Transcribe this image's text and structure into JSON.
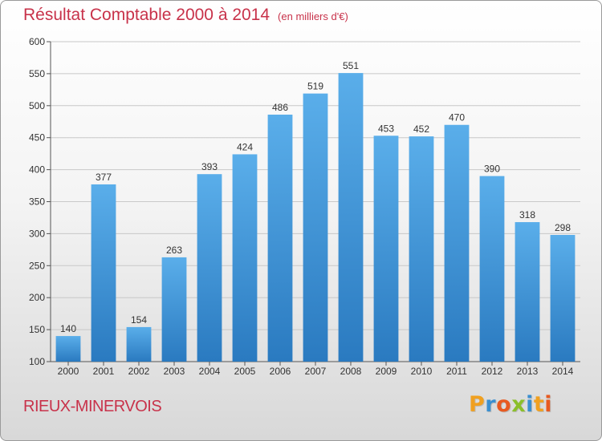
{
  "title": "Résultat Comptable 2000 à 2014",
  "subtitle": "(en milliers d'€)",
  "commune": "RIEUX-MINERVOIS",
  "logo": {
    "text": "Proxiti",
    "letters": [
      {
        "ch": "P",
        "color": "#f0a020"
      },
      {
        "ch": "r",
        "color": "#3a8fd0"
      },
      {
        "ch": "o",
        "color": "#e85a20"
      },
      {
        "ch": "x",
        "color": "#8bbf2a"
      },
      {
        "ch": "i",
        "color": "#3a8fd0"
      },
      {
        "ch": "t",
        "color": "#f0a020"
      },
      {
        "ch": "i",
        "color": "#e85a20"
      }
    ]
  },
  "colors": {
    "title": "#c8324a",
    "bar_top": "#5aaeea",
    "bar_bottom": "#2a7ac0",
    "grid": "#c8c8c8"
  },
  "chart_data": {
    "type": "bar",
    "categories": [
      "2000",
      "2001",
      "2002",
      "2003",
      "2004",
      "2005",
      "2006",
      "2007",
      "2008",
      "2009",
      "2010",
      "2011",
      "2012",
      "2013",
      "2014"
    ],
    "values": [
      140,
      377,
      154,
      263,
      393,
      424,
      486,
      519,
      551,
      453,
      452,
      470,
      390,
      318,
      298
    ],
    "ylim": [
      100,
      600
    ],
    "yticks": [
      100,
      150,
      200,
      250,
      300,
      350,
      400,
      450,
      500,
      550,
      600
    ],
    "grid": true,
    "data_labels": true
  }
}
